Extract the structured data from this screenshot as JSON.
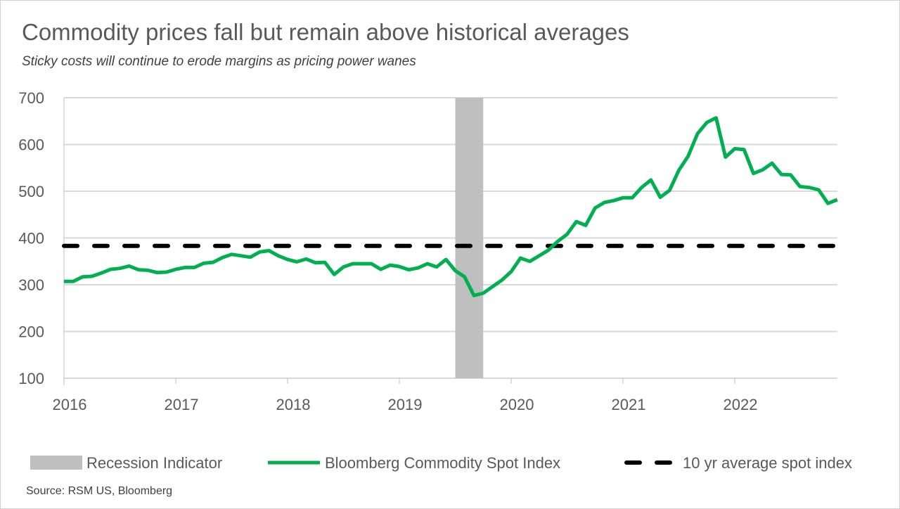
{
  "chart_data": {
    "type": "line",
    "title": "Commodity prices fall but remain above historical averages",
    "subtitle": "Sticky costs will continue to erode margins as pricing power wanes",
    "source": "Source: RSM US, Bloomberg",
    "ylim": [
      100,
      700
    ],
    "yticks": [
      "100",
      "200",
      "300",
      "400",
      "500",
      "600",
      "700"
    ],
    "xticks": [
      "2016",
      "2017",
      "2018",
      "2019",
      "2020",
      "2021",
      "2022"
    ],
    "grid": "horizontal",
    "legend_placement": "bottom",
    "start": "2016-01",
    "frequency": "monthly",
    "series": [
      {
        "name": "Bloomberg Commodity Spot Index",
        "color": "#00b050",
        "values": [
          307,
          307,
          317,
          318,
          325,
          333,
          335,
          340,
          332,
          331,
          326,
          327,
          333,
          337,
          337,
          346,
          348,
          358,
          365,
          362,
          359,
          370,
          373,
          362,
          354,
          349,
          355,
          347,
          348,
          322,
          338,
          345,
          345,
          345,
          333,
          342,
          339,
          332,
          336,
          345,
          338,
          354,
          330,
          317,
          277,
          282,
          296,
          310,
          328,
          357,
          350,
          362,
          374,
          393,
          408,
          435,
          427,
          464,
          476,
          480,
          486,
          486,
          508,
          524,
          487,
          502,
          545,
          575,
          623,
          647,
          657,
          573,
          591,
          589,
          538,
          546,
          560,
          536,
          535,
          510,
          508,
          503,
          474,
          482
        ]
      },
      {
        "name": "10 yr average spot index",
        "color": "#000000",
        "value": 383,
        "style": "dashed"
      }
    ],
    "recession": {
      "name": "Recession Indicator",
      "color": "#bfbfbf",
      "start": 2019.5,
      "end": 2019.75
    }
  }
}
